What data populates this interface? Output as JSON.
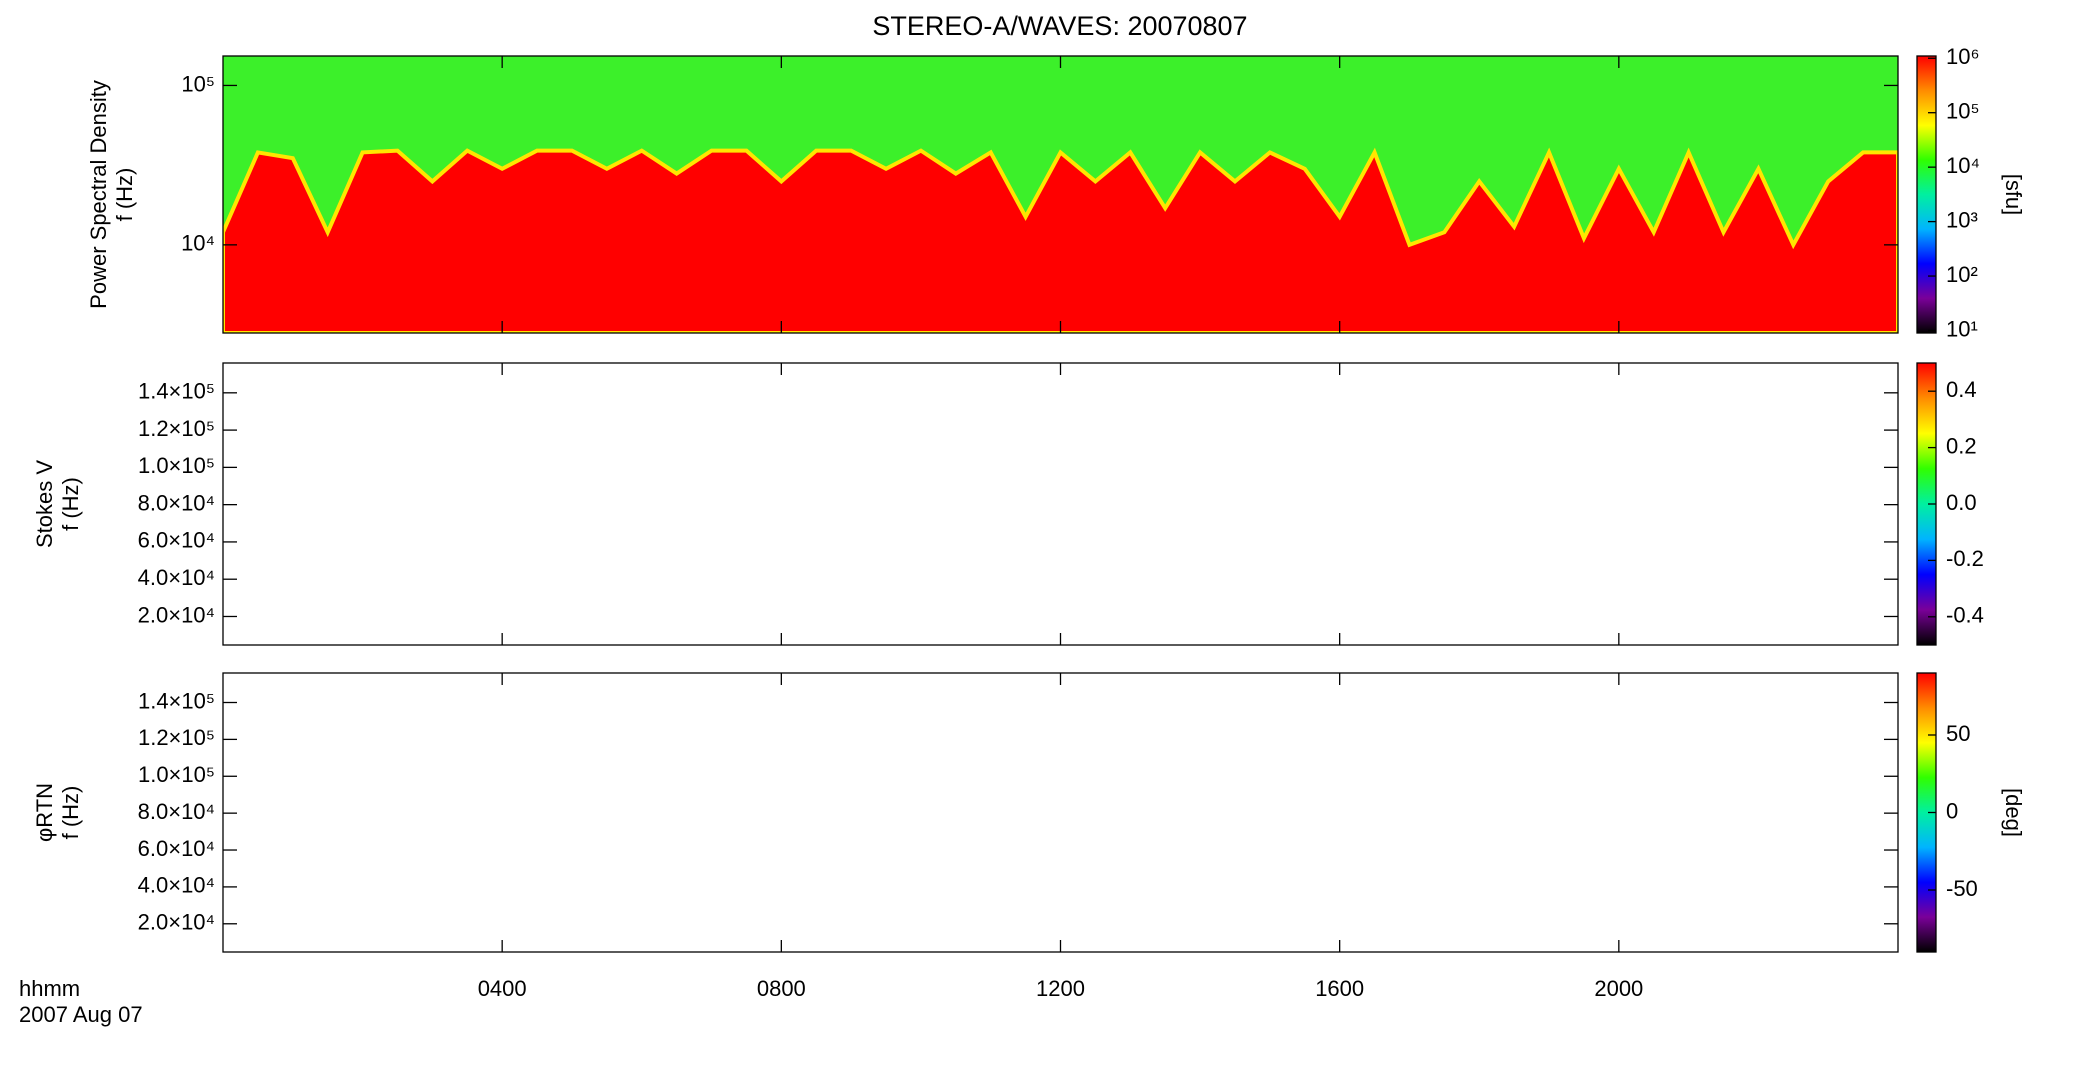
{
  "title": "STEREO-A/WAVES: 20070807",
  "x_axis": {
    "label": "hhmm",
    "date": "2007 Aug 07",
    "xlim": [
      0,
      24
    ],
    "xticks": [
      {
        "value": 4,
        "label": "0400"
      },
      {
        "value": 8,
        "label": "0800"
      },
      {
        "value": 12,
        "label": "1200"
      },
      {
        "value": 16,
        "label": "1600"
      },
      {
        "value": 20,
        "label": "2000"
      }
    ]
  },
  "chart_data": [
    {
      "type": "spectrogram",
      "ylabel": [
        "Power Spectral Density",
        "f (Hz)"
      ],
      "ylog": true,
      "ylim": [
        2800,
        153000
      ],
      "yticks": [
        {
          "value": 10000,
          "label": "10⁴"
        },
        {
          "value": 100000,
          "label": "10⁵"
        }
      ],
      "x": [
        0,
        0.5,
        1,
        1.5,
        2,
        2.5,
        3,
        3.5,
        4,
        4.5,
        5,
        5.5,
        6,
        6.5,
        7,
        7.5,
        8,
        8.5,
        9,
        9.5,
        10,
        10.5,
        11,
        11.5,
        12,
        12.5,
        13,
        13.5,
        14,
        14.5,
        15,
        15.5,
        16,
        16.5,
        17,
        17.5,
        18,
        18.5,
        19,
        19.5,
        20,
        20.5,
        21,
        21.5,
        22,
        22.5,
        23,
        23.5,
        24
      ],
      "values": [
        12000,
        38000,
        35000,
        12000,
        38000,
        39000,
        25000,
        39000,
        30000,
        39000,
        39000,
        30000,
        39000,
        28000,
        39000,
        39000,
        25000,
        39000,
        39000,
        30000,
        39000,
        28000,
        38000,
        15000,
        38000,
        25000,
        38000,
        17000,
        38000,
        25000,
        38000,
        30000,
        15000,
        38000,
        10000,
        12000,
        25000,
        13000,
        38000,
        11000,
        30000,
        12000,
        38000,
        12000,
        30000,
        10000,
        25000,
        38000,
        38000
      ],
      "below_color": "#ff0000",
      "above_color": "#3cf02a",
      "edge_color": "#ffe600",
      "colorbar": {
        "label": "[sfu]",
        "log": true,
        "zlim": [
          9,
          1100000
        ],
        "zticks": [
          {
            "value": 10,
            "label": "10¹"
          },
          {
            "value": 100,
            "label": "10²"
          },
          {
            "value": 1000,
            "label": "10³"
          },
          {
            "value": 10000,
            "label": "10⁴"
          },
          {
            "value": 100000,
            "label": "10⁵"
          },
          {
            "value": 1000000,
            "label": "10⁶"
          }
        ]
      }
    },
    {
      "type": "spectrogram",
      "ylabel": [
        "Stokes V",
        "f (Hz)"
      ],
      "ylog": false,
      "ylim": [
        4700,
        156000
      ],
      "yticks": [
        {
          "value": 20000,
          "label": "2.0×10⁴"
        },
        {
          "value": 40000,
          "label": "4.0×10⁴"
        },
        {
          "value": 60000,
          "label": "6.0×10⁴"
        },
        {
          "value": 80000,
          "label": "8.0×10⁴"
        },
        {
          "value": 100000,
          "label": "1.0×10⁵"
        },
        {
          "value": 120000,
          "label": "1.2×10⁵"
        },
        {
          "value": 140000,
          "label": "1.4×10⁵"
        }
      ],
      "colorbar": {
        "log": false,
        "zlim": [
          -0.5,
          0.5
        ],
        "zticks": [
          -0.4,
          -0.2,
          {
            "value": 0,
            "label": "0.0"
          },
          0.2,
          0.4
        ]
      }
    },
    {
      "type": "spectrogram",
      "ylabel": [
        "φRTN",
        "f (Hz)"
      ],
      "ylog": false,
      "ylim": [
        4700,
        156000
      ],
      "yticks": [
        {
          "value": 20000,
          "label": "2.0×10⁴"
        },
        {
          "value": 40000,
          "label": "4.0×10⁴"
        },
        {
          "value": 60000,
          "label": "6.0×10⁴"
        },
        {
          "value": 80000,
          "label": "8.0×10⁴"
        },
        {
          "value": 100000,
          "label": "1.0×10⁵"
        },
        {
          "value": 120000,
          "label": "1.2×10⁵"
        },
        {
          "value": 140000,
          "label": "1.4×10⁵"
        }
      ],
      "colorbar": {
        "label": "[deg]",
        "log": false,
        "zlim": [
          -90,
          90
        ],
        "zticks": [
          -50,
          0,
          50
        ]
      }
    }
  ],
  "colormap": [
    "#000000",
    "#7a0099",
    "#0000ff",
    "#00b4ff",
    "#00f0a0",
    "#30ff00",
    "#ffff00",
    "#ff8c00",
    "#ff0000"
  ]
}
